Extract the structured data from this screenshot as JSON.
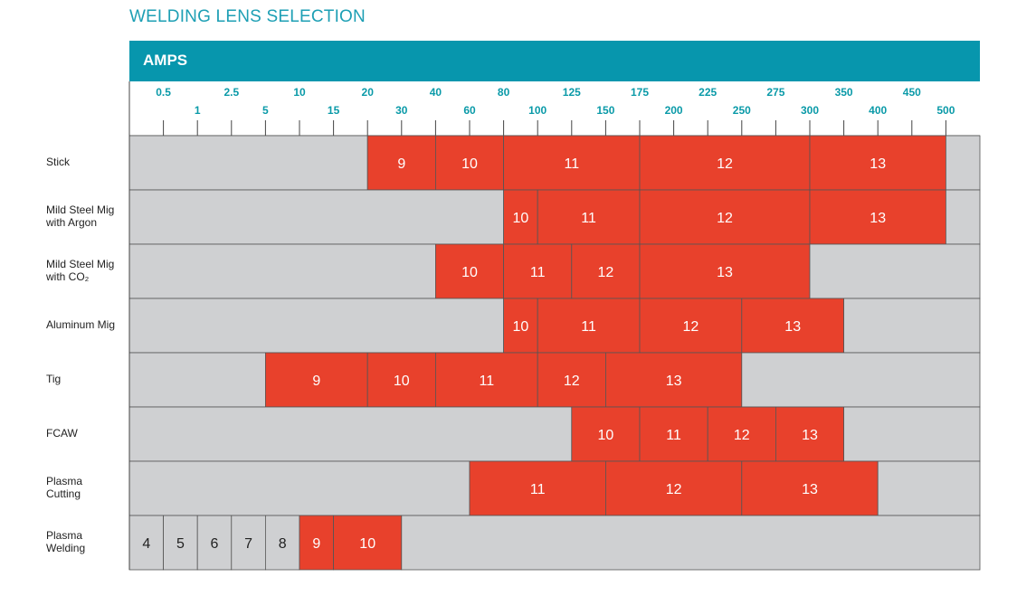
{
  "title": "WELDING LENS SELECTION",
  "colors": {
    "title": "#1d9fb4",
    "header_bg": "#0796ad",
    "header_text": "#ffffff",
    "tick_text": "#0a9aa8",
    "cell_gray": "#cfd0d2",
    "cell_red": "#e8412c",
    "border": "#555555"
  },
  "chart_data": {
    "type": "table",
    "title": "WELDING LENS SELECTION",
    "axis_label": "AMPS",
    "ticks_upper": [
      "0.5",
      "2.5",
      "10",
      "20",
      "40",
      "80",
      "125",
      "175",
      "225",
      "275",
      "350",
      "450"
    ],
    "ticks_lower": [
      "1",
      "5",
      "15",
      "30",
      "60",
      "100",
      "150",
      "200",
      "250",
      "300",
      "400",
      "500"
    ],
    "rows": [
      {
        "label": [
          "Stick"
        ],
        "segments": [
          {
            "from": 0,
            "to": 7,
            "shade": null
          },
          {
            "from": 7,
            "to": 9,
            "shade": "9"
          },
          {
            "from": 9,
            "to": 11,
            "shade": "10"
          },
          {
            "from": 11,
            "to": 15,
            "shade": "11"
          },
          {
            "from": 15,
            "to": 20,
            "shade": "12"
          },
          {
            "from": 20,
            "to": 24,
            "shade": "13"
          },
          {
            "from": 24,
            "to": 25,
            "shade": null
          }
        ]
      },
      {
        "label": [
          "Mild Steel Mig",
          "with Argon"
        ],
        "segments": [
          {
            "from": 0,
            "to": 11,
            "shade": null
          },
          {
            "from": 11,
            "to": 12,
            "shade": "10"
          },
          {
            "from": 12,
            "to": 15,
            "shade": "11"
          },
          {
            "from": 15,
            "to": 20,
            "shade": "12"
          },
          {
            "from": 20,
            "to": 24,
            "shade": "13"
          },
          {
            "from": 24,
            "to": 25,
            "shade": null
          }
        ]
      },
      {
        "label": [
          "Mild Steel Mig",
          "with CO₂"
        ],
        "segments": [
          {
            "from": 0,
            "to": 9,
            "shade": null
          },
          {
            "from": 9,
            "to": 11,
            "shade": "10"
          },
          {
            "from": 11,
            "to": 13,
            "shade": "11"
          },
          {
            "from": 13,
            "to": 15,
            "shade": "12"
          },
          {
            "from": 15,
            "to": 20,
            "shade": "13"
          },
          {
            "from": 20,
            "to": 25,
            "shade": null
          }
        ]
      },
      {
        "label": [
          "Aluminum Mig"
        ],
        "segments": [
          {
            "from": 0,
            "to": 11,
            "shade": null
          },
          {
            "from": 11,
            "to": 12,
            "shade": "10"
          },
          {
            "from": 12,
            "to": 15,
            "shade": "11"
          },
          {
            "from": 15,
            "to": 18,
            "shade": "12"
          },
          {
            "from": 18,
            "to": 21,
            "shade": "13"
          },
          {
            "from": 21,
            "to": 25,
            "shade": null
          }
        ]
      },
      {
        "label": [
          "Tig"
        ],
        "segments": [
          {
            "from": 0,
            "to": 4,
            "shade": null
          },
          {
            "from": 4,
            "to": 7,
            "shade": "9"
          },
          {
            "from": 7,
            "to": 9,
            "shade": "10"
          },
          {
            "from": 9,
            "to": 12,
            "shade": "11"
          },
          {
            "from": 12,
            "to": 14,
            "shade": "12"
          },
          {
            "from": 14,
            "to": 18,
            "shade": "13"
          },
          {
            "from": 18,
            "to": 25,
            "shade": null
          }
        ]
      },
      {
        "label": [
          "FCAW"
        ],
        "segments": [
          {
            "from": 0,
            "to": 13,
            "shade": null
          },
          {
            "from": 13,
            "to": 15,
            "shade": "10"
          },
          {
            "from": 15,
            "to": 17,
            "shade": "11"
          },
          {
            "from": 17,
            "to": 19,
            "shade": "12"
          },
          {
            "from": 19,
            "to": 21,
            "shade": "13"
          },
          {
            "from": 21,
            "to": 25,
            "shade": null
          }
        ]
      },
      {
        "label": [
          "Plasma",
          "Cutting"
        ],
        "segments": [
          {
            "from": 0,
            "to": 10,
            "shade": null
          },
          {
            "from": 10,
            "to": 14,
            "shade": "11"
          },
          {
            "from": 14,
            "to": 18,
            "shade": "12"
          },
          {
            "from": 18,
            "to": 22,
            "shade": "13"
          },
          {
            "from": 22,
            "to": 25,
            "shade": null
          }
        ]
      },
      {
        "label": [
          "Plasma",
          "Welding"
        ],
        "segments": [
          {
            "from": 0,
            "to": 1,
            "shade": "4",
            "gray": true
          },
          {
            "from": 1,
            "to": 2,
            "shade": "5",
            "gray": true
          },
          {
            "from": 2,
            "to": 3,
            "shade": "6",
            "gray": true
          },
          {
            "from": 3,
            "to": 4,
            "shade": "7",
            "gray": true
          },
          {
            "from": 4,
            "to": 5,
            "shade": "8",
            "gray": true
          },
          {
            "from": 5,
            "to": 6,
            "shade": "9"
          },
          {
            "from": 6,
            "to": 8,
            "shade": "10"
          },
          {
            "from": 8,
            "to": 25,
            "shade": null
          }
        ]
      }
    ]
  }
}
